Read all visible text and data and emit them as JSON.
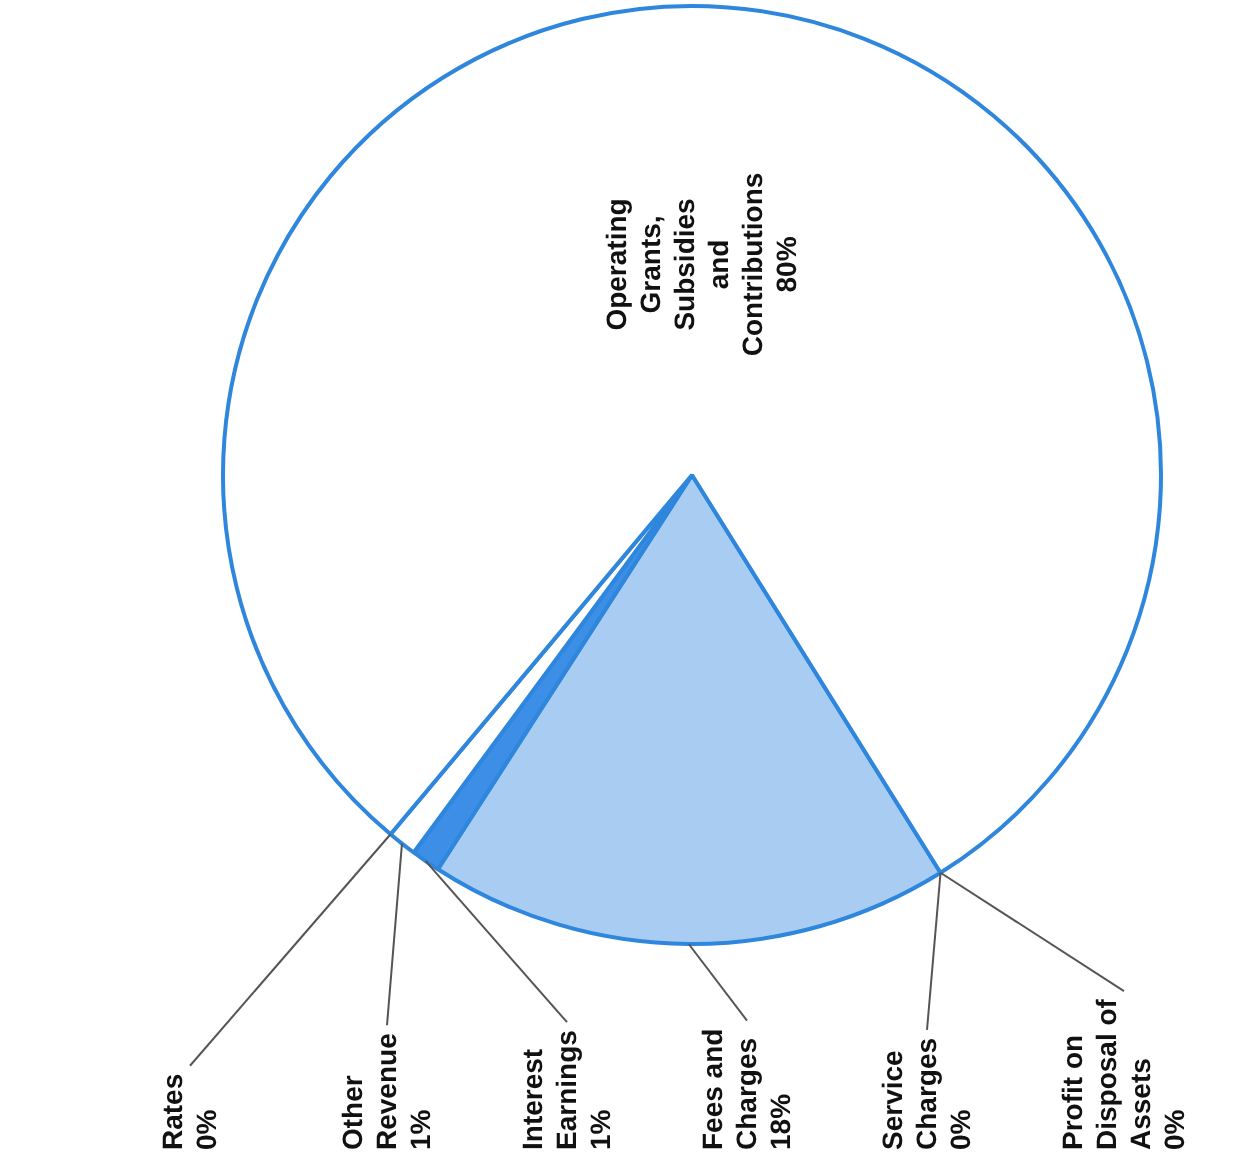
{
  "chart_data": {
    "type": "pie",
    "categories": [
      "Fees and Charges",
      "Interest Earnings",
      "Other Revenue",
      "Rates",
      "Operating Grants, Subsidies and Contributions",
      "Profit on Disposal of Assets",
      "Service Charges"
    ],
    "values": [
      18,
      1,
      1,
      0,
      80,
      0,
      0
    ],
    "value_labels": [
      "18%",
      "1%",
      "1%",
      "0%",
      "80%",
      "0%",
      "0%"
    ],
    "colors": [
      "#a9cdf2",
      "#3d8ee6",
      "#ffffff",
      "#3d8ee6",
      "#ffffff",
      "#3d8ee6",
      "#3d8ee6"
    ],
    "legend": false
  }
}
